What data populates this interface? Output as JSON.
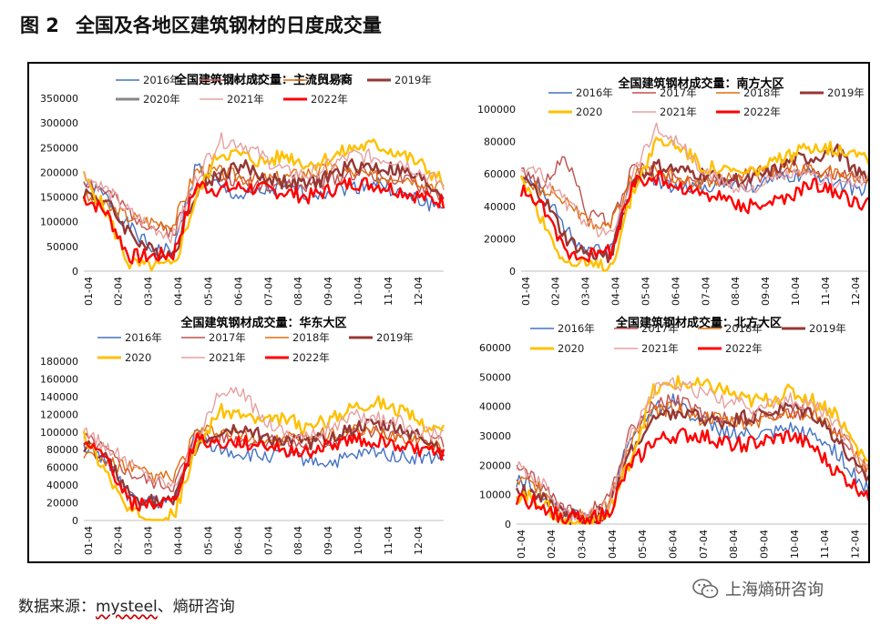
{
  "figure": {
    "number": "图 2",
    "title": "全国及各地区建筑钢材的日度成交量"
  },
  "source": {
    "label": "数据来源：",
    "name": "mysteel",
    "rest": "、熵研咨询"
  },
  "watermark": {
    "text": "上海熵研咨询",
    "icon": "wechat-icon"
  },
  "colors": {
    "2016年": "#4472c4",
    "2017年": "#c0504d",
    "2018年": "#e36c09",
    "2019年": "#953734",
    "2020": "#ffc000",
    "2021年": "#e6a0a0",
    "2022年": "#ff0000"
  },
  "chart_data": [
    {
      "type": "line",
      "title": "全国建筑钢材成交量：主流贸易商",
      "x_ticks": [
        "01-04",
        "02-04",
        "03-04",
        "04-04",
        "05-04",
        "06-04",
        "07-04",
        "08-04",
        "09-04",
        "10-04",
        "11-04",
        "12-04"
      ],
      "ylim": [
        0,
        350000
      ],
      "y_ticks": [
        0,
        50000,
        100000,
        150000,
        200000,
        250000,
        300000,
        350000
      ],
      "legend_rows": [
        [
          "2016年",
          "2017年",
          "2018年",
          "2019年"
        ],
        [
          "2020年",
          "2021年",
          "2022年"
        ]
      ],
      "series": [
        {
          "name": "2016年",
          "values": [
            178000,
            150000,
            90000,
            45000,
            40000,
            215000,
            170000,
            150000,
            160000,
            170000,
            155000,
            165000,
            170000,
            180000,
            160000,
            140000,
            130000
          ]
        },
        {
          "name": "2017年",
          "values": [
            185000,
            160000,
            120000,
            90000,
            80000,
            180000,
            190000,
            185000,
            175000,
            180000,
            170000,
            185000,
            200000,
            195000,
            185000,
            170000,
            150000
          ]
        },
        {
          "name": "2018年",
          "values": [
            150000,
            130000,
            110000,
            100000,
            95000,
            205000,
            200000,
            190000,
            185000,
            190000,
            200000,
            205000,
            200000,
            190000,
            195000,
            185000,
            170000
          ]
        },
        {
          "name": "2019年",
          "values": [
            160000,
            140000,
            80000,
            40000,
            35000,
            165000,
            195000,
            215000,
            190000,
            180000,
            175000,
            195000,
            215000,
            210000,
            205000,
            185000,
            155000
          ]
        },
        {
          "name": "2020",
          "values": [
            190000,
            120000,
            15000,
            8000,
            10000,
            150000,
            240000,
            235000,
            220000,
            235000,
            215000,
            230000,
            250000,
            255000,
            240000,
            215000,
            180000
          ]
        },
        {
          "name": "2021年",
          "values": [
            195000,
            165000,
            120000,
            90000,
            70000,
            190000,
            265000,
            260000,
            230000,
            200000,
            195000,
            215000,
            235000,
            230000,
            225000,
            200000,
            175000
          ]
        },
        {
          "name": "2022年",
          "values": [
            150000,
            120000,
            30000,
            30000,
            35000,
            175000,
            165000,
            170000,
            165000,
            160000,
            150000,
            165000,
            180000,
            175000,
            165000,
            150000,
            140000
          ]
        }
      ]
    },
    {
      "type": "line",
      "title": "全国建筑钢材成交量：南方大区",
      "x_ticks": [
        "01-04",
        "02-04",
        "03-04",
        "04-04",
        "05-04",
        "06-04",
        "07-04",
        "08-04",
        "09-04",
        "10-04",
        "11-04",
        "12-04"
      ],
      "ylim": [
        0,
        100000
      ],
      "y_ticks": [
        0,
        20000,
        40000,
        60000,
        80000,
        100000
      ],
      "legend_rows": [
        [
          "2016年",
          "2017年",
          "2018年",
          "2019年"
        ],
        [
          "2020",
          "2021年",
          "2022年"
        ]
      ],
      "series": [
        {
          "name": "2016年",
          "values": [
            62000,
            50000,
            25000,
            12000,
            12000,
            60000,
            55000,
            50000,
            52000,
            55000,
            52000,
            55000,
            58000,
            60000,
            55000,
            50000,
            55000
          ]
        },
        {
          "name": "2017年",
          "values": [
            60000,
            55000,
            70000,
            35000,
            30000,
            65000,
            60000,
            58000,
            55000,
            57000,
            55000,
            60000,
            62000,
            63000,
            60000,
            58000,
            60000
          ]
        },
        {
          "name": "2018年",
          "values": [
            55000,
            50000,
            45000,
            30000,
            28000,
            60000,
            62000,
            58000,
            55000,
            58000,
            60000,
            62000,
            65000,
            62000,
            60000,
            58000,
            55000
          ]
        },
        {
          "name": "2019年",
          "values": [
            58000,
            45000,
            20000,
            10000,
            10000,
            55000,
            65000,
            62000,
            60000,
            58000,
            55000,
            60000,
            68000,
            70000,
            75000,
            60000,
            55000
          ]
        },
        {
          "name": "2020",
          "values": [
            60000,
            30000,
            5000,
            3000,
            3000,
            50000,
            80000,
            78000,
            65000,
            62000,
            60000,
            65000,
            72000,
            78000,
            75000,
            75000,
            62000
          ]
        },
        {
          "name": "2021年",
          "values": [
            65000,
            58000,
            42000,
            28000,
            22000,
            62000,
            88000,
            80000,
            62000,
            55000,
            50000,
            55000,
            60000,
            58000,
            55000,
            55000,
            58000
          ]
        },
        {
          "name": "2022年",
          "values": [
            50000,
            38000,
            12000,
            10000,
            12000,
            55000,
            58000,
            52000,
            48000,
            45000,
            40000,
            42000,
            45000,
            55000,
            48000,
            42000,
            44000
          ]
        }
      ]
    },
    {
      "type": "line",
      "title": "全国建筑钢材成交量：华东大区",
      "x_ticks": [
        "01-04",
        "02-04",
        "03-04",
        "04-04",
        "05-04",
        "06-04",
        "07-04",
        "08-04",
        "09-04",
        "10-04",
        "11-04",
        "12-04"
      ],
      "ylim": [
        0,
        180000
      ],
      "y_ticks": [
        0,
        20000,
        40000,
        60000,
        80000,
        100000,
        120000,
        140000,
        160000,
        180000
      ],
      "legend_rows": [
        [
          "2016年",
          "2017年",
          "2018年",
          "2019年"
        ],
        [
          "2020",
          "2021年",
          "2022年"
        ]
      ],
      "series": [
        {
          "name": "2016年",
          "values": [
            85000,
            70000,
            25000,
            20000,
            20000,
            100000,
            80000,
            75000,
            72000,
            75000,
            68000,
            65000,
            72000,
            78000,
            72000,
            70000,
            72000
          ]
        },
        {
          "name": "2017年",
          "values": [
            95000,
            80000,
            55000,
            45000,
            40000,
            95000,
            95000,
            92000,
            88000,
            90000,
            85000,
            90000,
            100000,
            100000,
            95000,
            90000,
            88000
          ]
        },
        {
          "name": "2018年",
          "values": [
            75000,
            65000,
            60000,
            50000,
            48000,
            100000,
            100000,
            95000,
            90000,
            92000,
            95000,
            98000,
            100000,
            98000,
            95000,
            90000,
            85000
          ]
        },
        {
          "name": "2019年",
          "values": [
            85000,
            70000,
            30000,
            22000,
            20000,
            85000,
            100000,
            105000,
            95000,
            90000,
            88000,
            95000,
            105000,
            108000,
            105000,
            95000,
            80000
          ]
        },
        {
          "name": "2020",
          "values": [
            95000,
            55000,
            8000,
            5000,
            5000,
            80000,
            125000,
            120000,
            110000,
            115000,
            105000,
            115000,
            130000,
            135000,
            125000,
            110000,
            100000
          ]
        },
        {
          "name": "2021年",
          "values": [
            98000,
            85000,
            65000,
            50000,
            40000,
            95000,
            140000,
            145000,
            115000,
            100000,
            95000,
            105000,
            118000,
            115000,
            112000,
            100000,
            95000
          ]
        },
        {
          "name": "2022年",
          "values": [
            85000,
            70000,
            20000,
            18000,
            20000,
            95000,
            85000,
            88000,
            85000,
            80000,
            78000,
            85000,
            92000,
            90000,
            85000,
            80000,
            75000
          ]
        }
      ]
    },
    {
      "type": "line",
      "title": "全国建筑钢材成交量：北方大区",
      "x_ticks": [
        "01-04",
        "02-04",
        "03-04",
        "04-04",
        "05-04",
        "06-04",
        "07-04",
        "08-04",
        "09-04",
        "10-04",
        "11-04",
        "12-04"
      ],
      "ylim": [
        0,
        60000
      ],
      "y_ticks": [
        0,
        10000,
        20000,
        30000,
        40000,
        50000,
        60000
      ],
      "legend_rows": [
        [
          "2016年",
          "2017年",
          "2018年",
          "2019年"
        ],
        [
          "2020",
          "2021年",
          "2022年"
        ]
      ],
      "series": [
        {
          "name": "2016年",
          "values": [
            15000,
            12000,
            3000,
            2000,
            5000,
            30000,
            40000,
            42000,
            35000,
            32000,
            30000,
            30000,
            32000,
            30000,
            25000,
            15000,
            8000
          ]
        },
        {
          "name": "2017年",
          "values": [
            18000,
            14000,
            5000,
            4000,
            8000,
            32000,
            40000,
            42000,
            38000,
            36000,
            35000,
            37000,
            38000,
            38000,
            32000,
            20000,
            15000
          ]
        },
        {
          "name": "2018年",
          "values": [
            14000,
            12000,
            4000,
            3000,
            6000,
            28000,
            38000,
            40000,
            36000,
            35000,
            34000,
            36000,
            38000,
            38000,
            32000,
            22000,
            16000
          ]
        },
        {
          "name": "2019年",
          "values": [
            12000,
            10000,
            3000,
            2000,
            4000,
            25000,
            35000,
            38000,
            36000,
            35000,
            36000,
            38000,
            40000,
            38000,
            30000,
            18000,
            13000
          ]
        },
        {
          "name": "2020",
          "values": [
            10000,
            8000,
            1000,
            500,
            3000,
            22000,
            45000,
            48000,
            47000,
            46000,
            42000,
            42000,
            45000,
            42000,
            38000,
            25000,
            18000
          ]
        },
        {
          "name": "2021年",
          "values": [
            20000,
            15000,
            3000,
            2000,
            6000,
            30000,
            45000,
            48000,
            45000,
            42000,
            40000,
            40000,
            42000,
            40000,
            35000,
            22000,
            18000
          ]
        },
        {
          "name": "2022年",
          "values": [
            9000,
            7000,
            2000,
            2000,
            3000,
            20000,
            28000,
            30000,
            30000,
            28000,
            27000,
            28000,
            30000,
            26000,
            18000,
            12000,
            9000
          ]
        }
      ]
    }
  ]
}
